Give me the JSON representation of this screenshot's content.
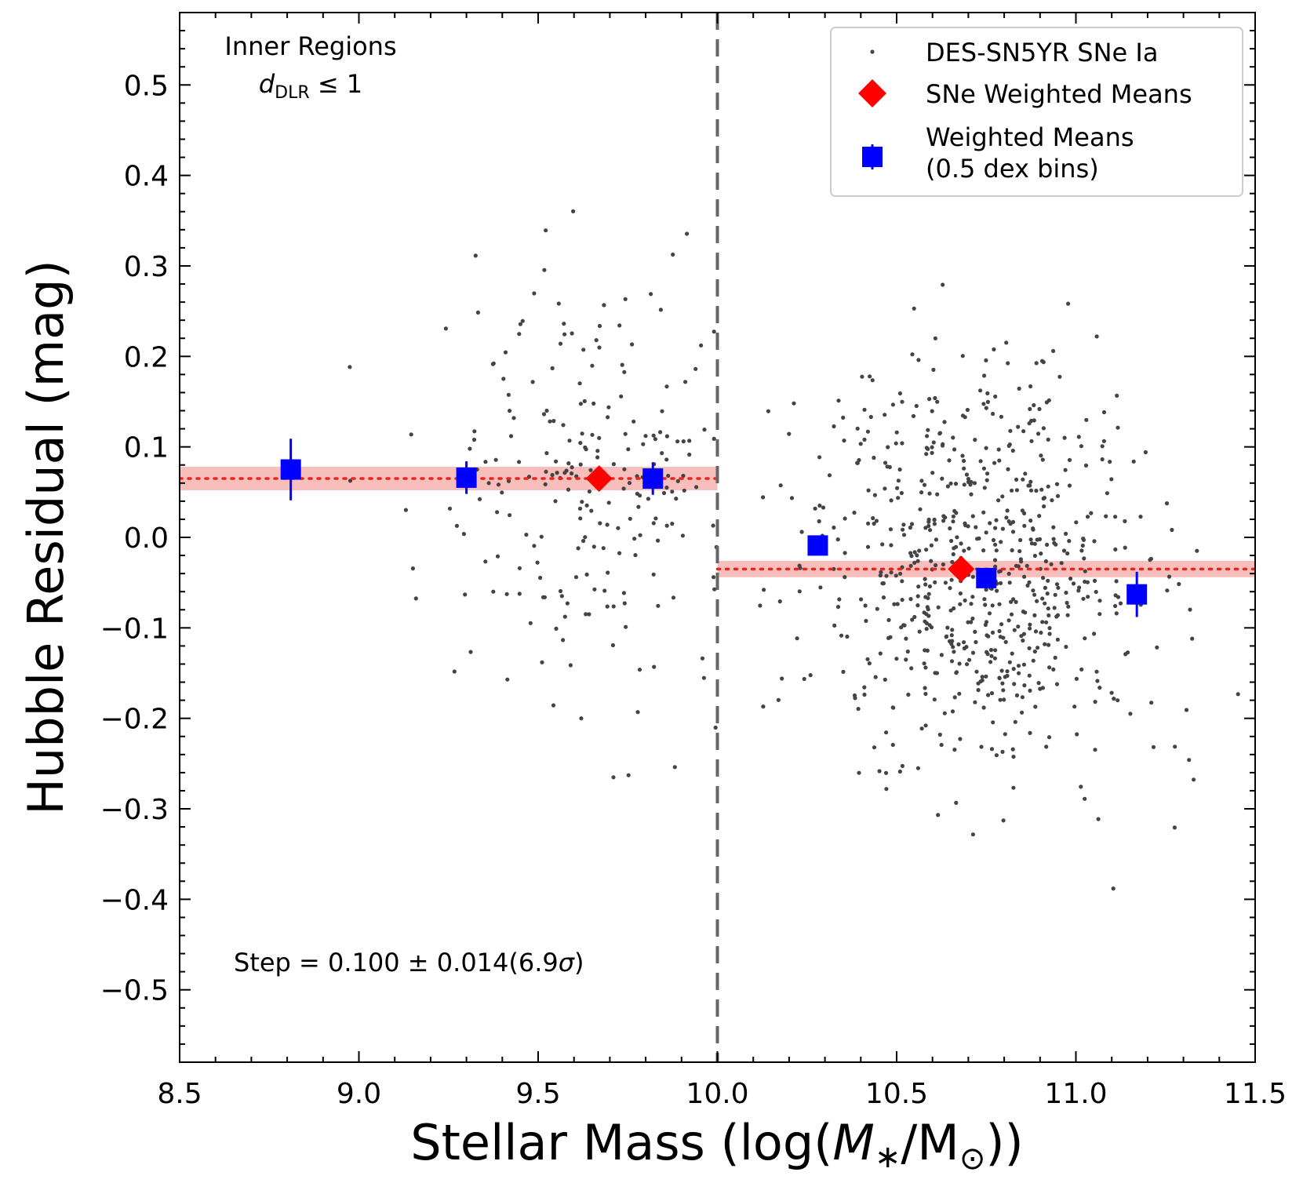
{
  "chart_data": {
    "type": "scatter",
    "xlabel_prefix": "Stellar Mass (log(",
    "xlabel_var": "M",
    "xlabel_sub": "∗",
    "xlabel_sep": "/M",
    "xlabel_sun": "⊙",
    "xlabel_suffix": "))",
    "ylabel": "Hubble Residual (mag)",
    "xlim": [
      8.5,
      11.5
    ],
    "ylim": [
      -0.58,
      0.58
    ],
    "xticks": [
      8.5,
      9.0,
      9.5,
      10.0,
      10.5,
      11.0,
      11.5
    ],
    "xtick_labels": [
      "8.5",
      "9.0",
      "9.5",
      "10.0",
      "10.5",
      "11.0",
      "11.5"
    ],
    "yticks": [
      -0.5,
      -0.4,
      -0.3,
      -0.2,
      -0.1,
      0.0,
      0.1,
      0.2,
      0.3,
      0.4,
      0.5
    ],
    "ytick_labels": [
      "−0.5",
      "−0.4",
      "−0.3",
      "−0.2",
      "−0.1",
      "0.0",
      "0.1",
      "0.2",
      "0.3",
      "0.4",
      "0.5"
    ],
    "split_mass": 10.0,
    "annotation": {
      "region_title": "Inner Regions",
      "region_var": "d",
      "region_sub": "DLR",
      "region_rest": " ≤ 1",
      "step_prefix": "Step = 0.100 ± 0.014(6.9",
      "step_sigma": "σ",
      "step_suffix": ")"
    },
    "legend": [
      {
        "label": "DES-SN5YR SNe Ia",
        "marker": "dot"
      },
      {
        "label": "SNe Weighted Means",
        "marker": "diamond"
      },
      {
        "label": "Weighted Means",
        "label2": "(0.5 dex bins)",
        "marker": "square"
      }
    ],
    "step_levels": [
      {
        "x_range": [
          8.5,
          10.0
        ],
        "mean": 0.065,
        "err": 0.013
      },
      {
        "x_range": [
          10.0,
          11.5
        ],
        "mean": -0.035,
        "err": 0.009
      }
    ],
    "sne_weighted_means": [
      {
        "x": 9.67,
        "y": 0.065
      },
      {
        "x": 10.68,
        "y": -0.035
      }
    ],
    "binned_weighted_means": [
      {
        "x": 8.81,
        "y": 0.075,
        "err": 0.034
      },
      {
        "x": 9.3,
        "y": 0.066,
        "err": 0.018
      },
      {
        "x": 9.82,
        "y": 0.065,
        "err": 0.018
      },
      {
        "x": 10.28,
        "y": -0.009,
        "err": 0.008
      },
      {
        "x": 10.75,
        "y": -0.045,
        "err": 0.011
      },
      {
        "x": 11.17,
        "y": -0.063,
        "err": 0.025
      }
    ],
    "scatter": {
      "name": "DES-SN5YR SNe Ia",
      "count_low_mass": 230,
      "count_high_mass": 700,
      "low_mass_mean": 0.065,
      "high_mass_mean": -0.035,
      "x_range": [
        8.5,
        11.5
      ],
      "spread": 0.16
    },
    "colors": {
      "scatter": "#444444",
      "diamond": "#ff0000",
      "square": "#0000ff",
      "step_line": "#e8251f",
      "step_band": "#f4a3a0",
      "split_line": "#666666"
    }
  }
}
